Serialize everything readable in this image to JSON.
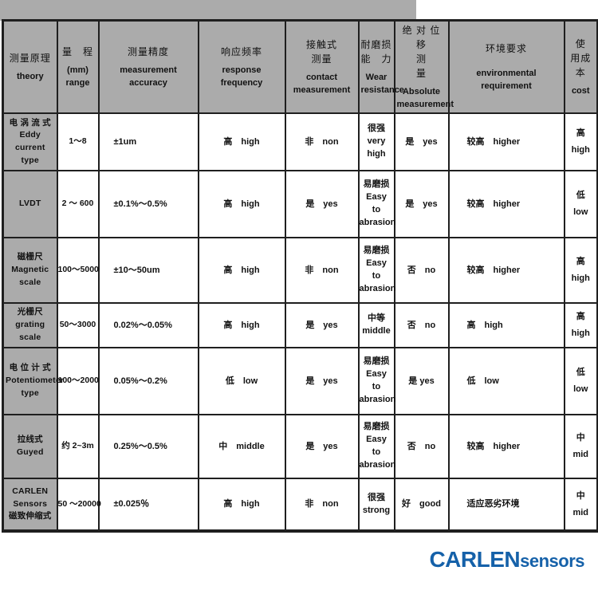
{
  "colors": {
    "header_bg": "#ababab",
    "border": "#1f1f1f",
    "cell_bg": "#ffffff",
    "logo_blue": "#1561a9"
  },
  "table": {
    "columns": [
      {
        "key": "theory",
        "zh": "测量原理",
        "en": "theory"
      },
      {
        "key": "range",
        "zh": "量　程",
        "en": "(mm)\nrange"
      },
      {
        "key": "accuracy",
        "zh": "测量精度",
        "en": "measurement accuracy"
      },
      {
        "key": "response",
        "zh": "响应频率",
        "en": "response frequency"
      },
      {
        "key": "contact",
        "zh": "接触式\n测量",
        "en": "contact\nmeasurement"
      },
      {
        "key": "wear",
        "zh": "耐磨损\n能　力",
        "en": "Wear\nresistance"
      },
      {
        "key": "absolute",
        "zh": "绝 对 位 移\n测　　　量",
        "en": "Absolute\nmeasurement"
      },
      {
        "key": "environment",
        "zh": "环境要求",
        "en": "environmental requirement"
      },
      {
        "key": "cost",
        "zh": "使\n用成本",
        "en": "cost"
      }
    ],
    "rows": [
      {
        "theory": "电 涡 流 式\nEddy\ncurrent type",
        "range": "1～8",
        "accuracy": "±1um",
        "response": "高　high",
        "contact": "非　non",
        "wear": "很强\nvery high",
        "absolute": "是　yes",
        "environment": "较高　higher",
        "cost": "高\nhigh"
      },
      {
        "theory": "LVDT",
        "range": "2 ～ 600",
        "accuracy": "±0.1%～0.5%",
        "response": "高　high",
        "contact": "是　yes",
        "wear": "易磨损\nEasy\nto\nabrasion",
        "absolute": "是　yes",
        "environment": "较高　higher",
        "cost": "低\nlow"
      },
      {
        "theory": "磁栅尺\nMagnetic scale",
        "range": "100～5000",
        "accuracy": "±10～50um",
        "response": "高　high",
        "contact": "非　non",
        "wear": "易磨损\nEasy\nto\nabrasion",
        "absolute": "否　no",
        "environment": "较高　higher",
        "cost": "高\nhigh"
      },
      {
        "theory": "光栅尺\ngrating scale",
        "range": "50～3000",
        "accuracy": "0.02%～0.05%",
        "response": "高　high",
        "contact": "是　yes",
        "wear": "中等\nmiddle",
        "absolute": "否　no",
        "environment": "高　high",
        "cost": "高\nhigh"
      },
      {
        "theory": "电 位 计 式\nPotentiometer\ntype",
        "range": "100～2000",
        "accuracy": "0.05%～0.2%",
        "response": "低　low",
        "contact": "是　yes",
        "wear": "易磨损\nEasy\nto\nabrasion",
        "absolute": "是 yes",
        "environment": "低　low",
        "cost": "低\nlow"
      },
      {
        "theory": "拉线式\nGuyed",
        "range": "约 2~3m",
        "accuracy": "0.25%～0.5%",
        "response": "中　middle",
        "contact": "是　yes",
        "wear": "易磨损\nEasy\nto\nabrasion",
        "absolute": "否　no",
        "environment": "较高　higher",
        "cost": "中\nmid"
      },
      {
        "theory": "CARLEN\nSensors\n磁致伸缩式",
        "range": "50 ～20000",
        "accuracy": "±0.025％",
        "response": "高　high",
        "contact": "非　non",
        "wear": "很强\nstrong",
        "absolute": "好　good",
        "environment": "适应恶劣环境",
        "cost": "中\nmid"
      }
    ]
  },
  "footer": {
    "logo_primary": "CARLEN",
    "logo_secondary": "sensors"
  }
}
